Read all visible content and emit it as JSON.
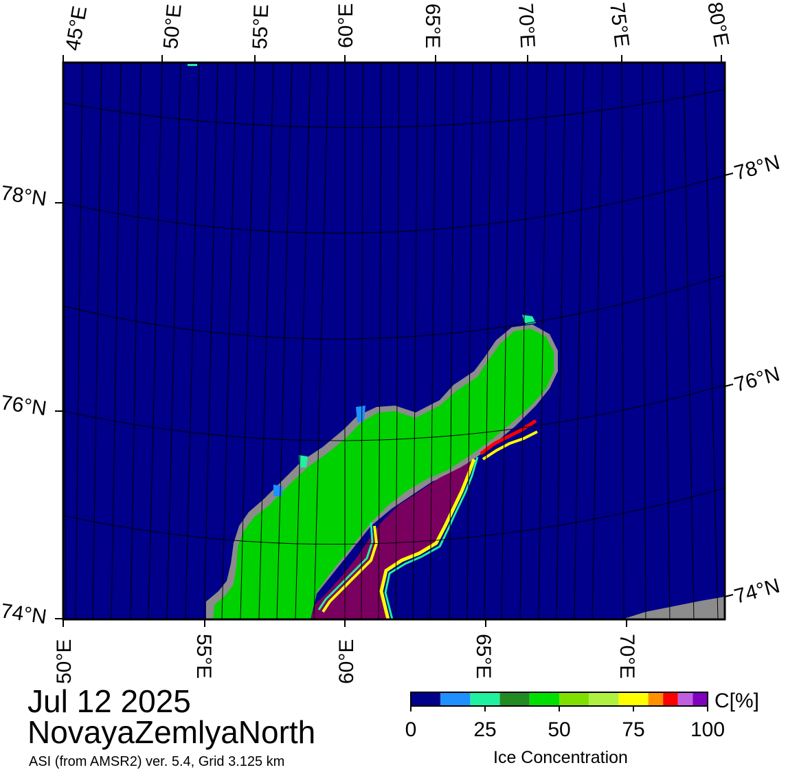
{
  "map": {
    "date": "Jul 12 2025",
    "region": "NovayaZemlyaNorth",
    "source": "ASI (from AMSR2) ver. 5.4,  Grid 3.125 km",
    "top_lon_labels": [
      "45°E",
      "50°E",
      "55°E",
      "60°E",
      "65°E",
      "70°E",
      "75°E",
      "80°E"
    ],
    "bottom_lon_labels": [
      "50°E",
      "55°E",
      "60°E",
      "65°E",
      "70°E"
    ],
    "left_lat_labels": [
      "78°N",
      "76°N",
      "74°N"
    ],
    "right_lat_labels": [
      "78°N",
      "76°N",
      "74°N"
    ],
    "colors": {
      "ocean_open_water": "#00008a",
      "land": "#00d200",
      "land_mask": "#8c8c8c",
      "high_concentration_ice": "#7a0060"
    }
  },
  "colorbar": {
    "unit": "C[%]",
    "title": "Ice Concentration",
    "ticks": [
      "0",
      "25",
      "50",
      "75",
      "100"
    ],
    "colors": [
      "#00008a",
      "#1e90ff",
      "#20f0a0",
      "#228b22",
      "#00e000",
      "#7fe000",
      "#b0f040",
      "#ffff00",
      "#ff9000",
      "#ff0000",
      "#c060e0",
      "#8000c0"
    ]
  }
}
